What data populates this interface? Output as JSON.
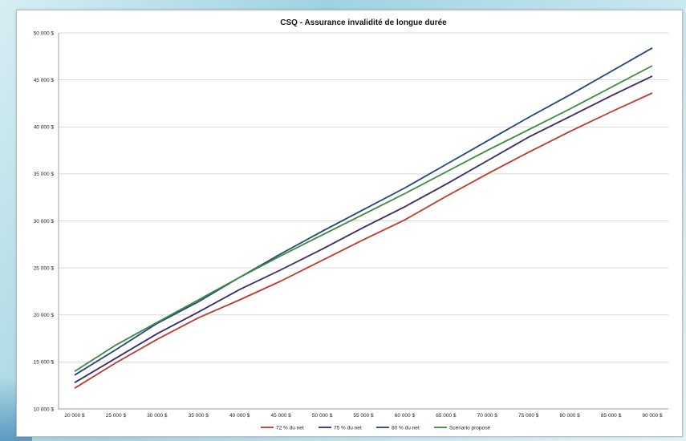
{
  "chart_data": {
    "type": "line",
    "title": "CSQ - Assurance invalidité de longue durée",
    "xlabel": "",
    "ylabel": "",
    "x": [
      20000,
      25000,
      30000,
      35000,
      40000,
      45000,
      50000,
      55000,
      60000,
      65000,
      70000,
      75000,
      80000,
      85000,
      90000
    ],
    "x_tick_labels": [
      "20 000 $",
      "25 000 $",
      "30 000 $",
      "35 000 $",
      "40 000 $",
      "45 000 $",
      "50 000 $",
      "55 000 $",
      "60 000 $",
      "65 000 $",
      "70 000 $",
      "75 000 $",
      "80 000 $",
      "85 000 $",
      "90 000 $"
    ],
    "ylim": [
      10000,
      50000
    ],
    "y_ticks": [
      10000,
      15000,
      20000,
      25000,
      30000,
      35000,
      40000,
      45000,
      50000
    ],
    "y_tick_labels": [
      "10 000 $",
      "15 000 $",
      "20 000 $",
      "25 000 $",
      "30 000 $",
      "35 000 $",
      "40 000 $",
      "45 000 $",
      "50 000 $"
    ],
    "grid": "horizontal",
    "legend_position": "bottom",
    "series": [
      {
        "name": "72 % du net",
        "color": "#c0392b",
        "values": [
          12200,
          14900,
          17400,
          19700,
          21600,
          23600,
          25800,
          28000,
          30100,
          32600,
          35000,
          37300,
          39500,
          41600,
          43600
        ]
      },
      {
        "name": "75 % du net",
        "color": "#3a2a66",
        "values": [
          12800,
          15400,
          18000,
          20300,
          22700,
          24800,
          27000,
          29300,
          31500,
          33900,
          36400,
          38900,
          41100,
          43300,
          45400
        ]
      },
      {
        "name": "80 % du net",
        "color": "#24457e",
        "values": [
          13600,
          16300,
          19100,
          21400,
          24000,
          26500,
          28900,
          31200,
          33500,
          36000,
          38500,
          41000,
          43400,
          45900,
          48400
        ]
      },
      {
        "name": "Scénario proposé",
        "color": "#3c8a3c",
        "values": [
          14000,
          16800,
          19200,
          21600,
          24000,
          26300,
          28500,
          30700,
          32900,
          35200,
          37500,
          39700,
          41900,
          44200,
          46500
        ]
      }
    ]
  }
}
